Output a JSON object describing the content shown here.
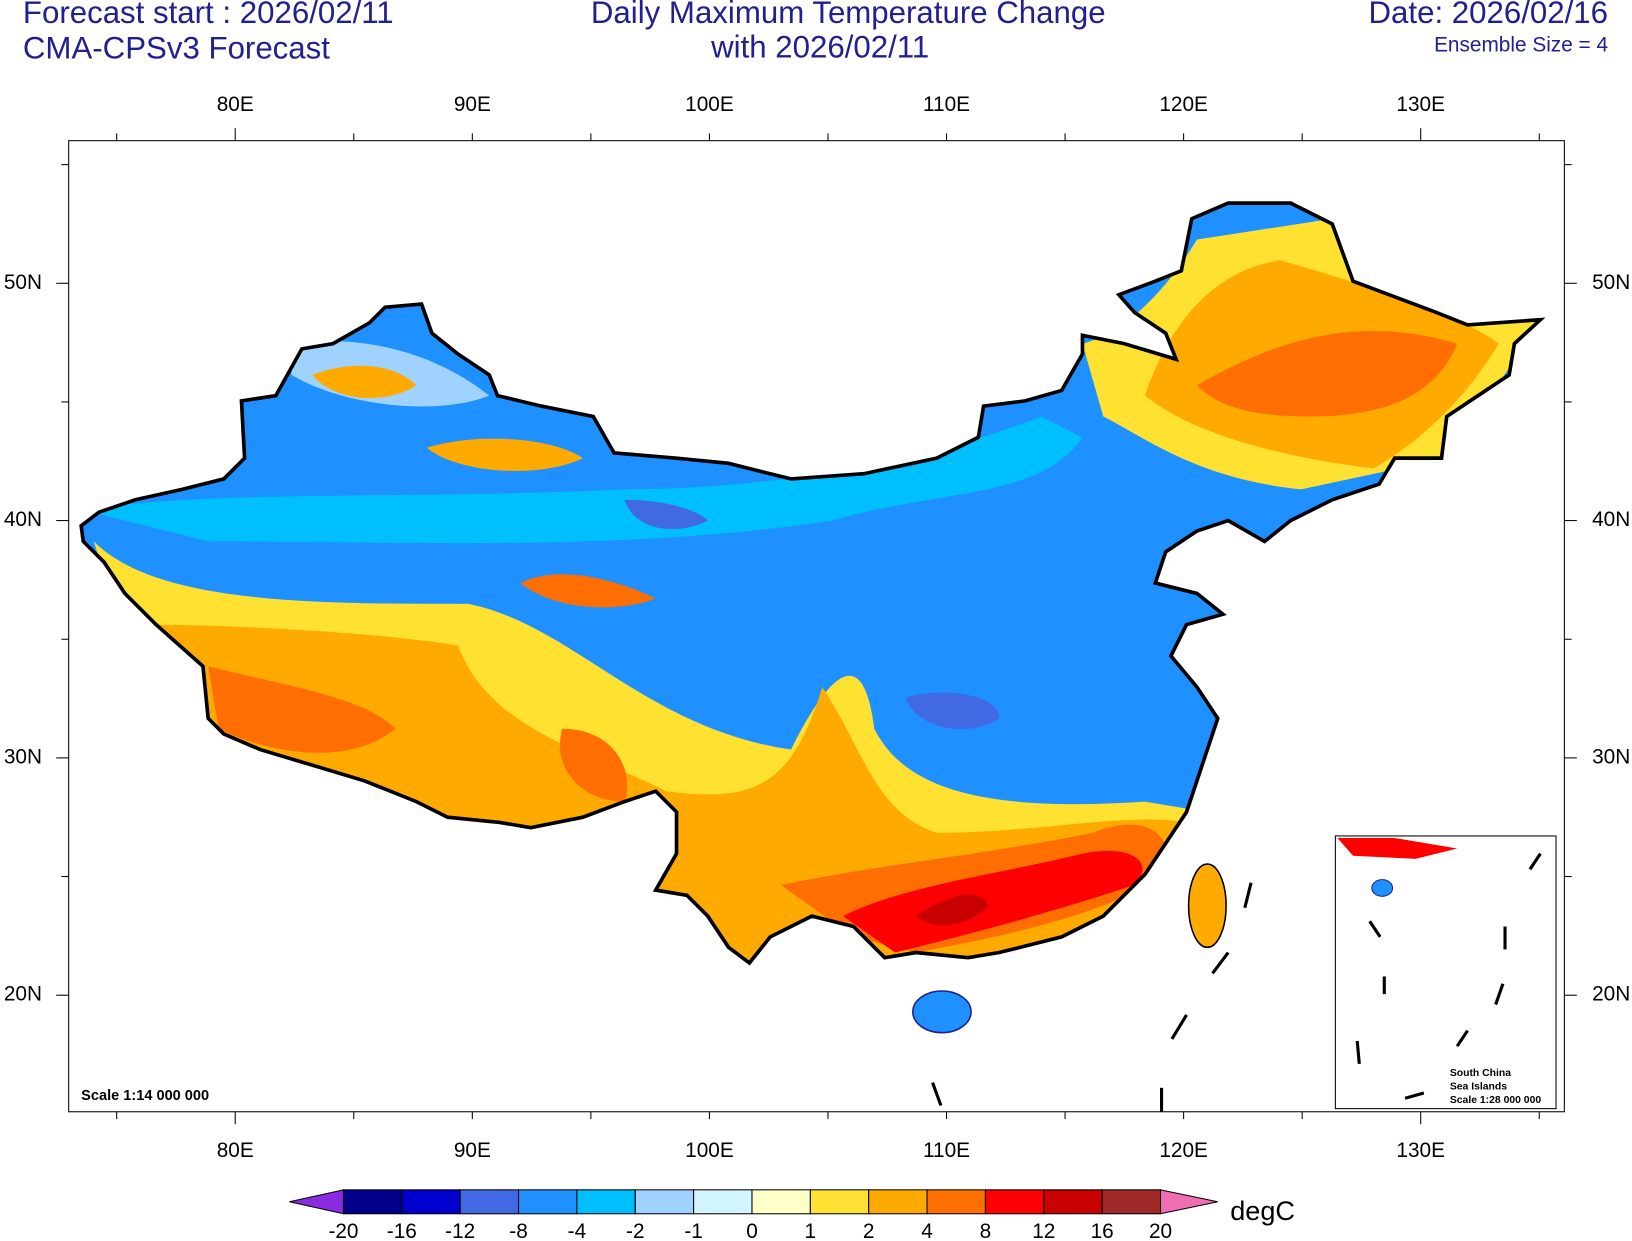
{
  "header": {
    "forecast_start": "Forecast start : 2026/02/11",
    "model": "CMA-CPSv3 Forecast",
    "title_line1": "Daily Maximum Temperature Change",
    "title_line2": "with 2026/02/11",
    "date": "Date: 2026/02/16",
    "ensemble": "Ensemble Size = 4"
  },
  "map": {
    "lon_labels": [
      "80E",
      "90E",
      "100E",
      "110E",
      "120E",
      "130E"
    ],
    "lat_labels": [
      "50N",
      "40N",
      "30N",
      "20N"
    ],
    "scale": "Scale 1:14 000 000",
    "inset": [
      "South China",
      "Sea Islands",
      "Scale 1:28 000 000"
    ]
  },
  "colorbar": {
    "levels": [
      -20,
      -16,
      -12,
      -8,
      -4,
      -2,
      -1,
      0,
      1,
      2,
      4,
      8,
      12,
      16,
      20
    ],
    "colors": [
      "#8a2be2",
      "#00008b",
      "#0000cd",
      "#4169e1",
      "#1e90ff",
      "#00bfff",
      "#a0d2ff",
      "#d2f5ff",
      "#ffffc8",
      "#ffe132",
      "#ffaa00",
      "#ff6e00",
      "#ff0000",
      "#c80000",
      "#a02828",
      "#f06eb4"
    ],
    "unit": "degC"
  }
}
